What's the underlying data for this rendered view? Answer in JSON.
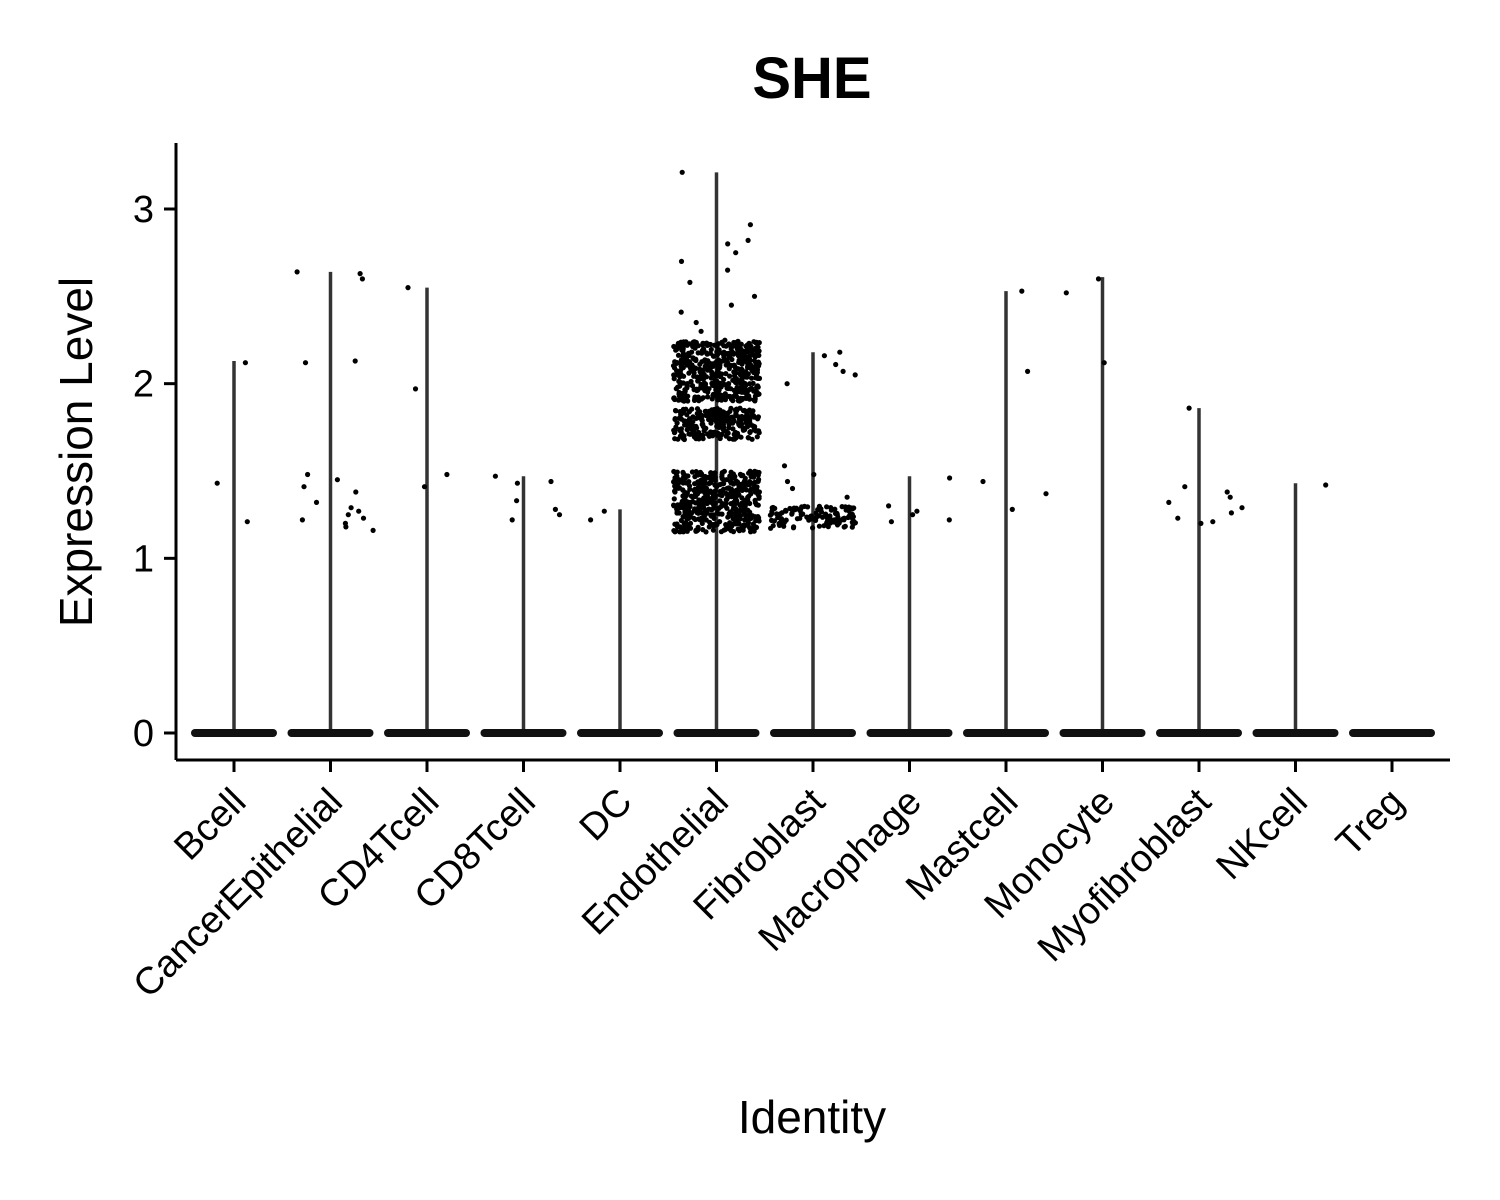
{
  "chart_data": {
    "type": "violin",
    "title": "SHE",
    "xlabel": "Identity",
    "ylabel": "Expression Level",
    "ylim": [
      -0.15,
      3.38
    ],
    "yticks": [
      0,
      1,
      2,
      3
    ],
    "categories": [
      "Bcell",
      "CancerEpithelial",
      "CD4Tcell",
      "CD8Tcell",
      "DC",
      "Endothelial",
      "Fibroblast",
      "Macrophage",
      "Mastcell",
      "Monocyte",
      "Myofibroblast",
      "NKcell",
      "Treg"
    ],
    "series": [
      {
        "name": "Bcell",
        "max": 2.13,
        "points": [
          1.21,
          1.43,
          2.12
        ]
      },
      {
        "name": "CancerEpithelial",
        "max": 2.64,
        "points": [
          1.16,
          1.18,
          1.2,
          1.22,
          1.23,
          1.25,
          1.27,
          1.29,
          1.32,
          1.38,
          1.41,
          1.45,
          1.48,
          2.12,
          2.13,
          2.6,
          2.63,
          2.64
        ]
      },
      {
        "name": "CD4Tcell",
        "max": 2.55,
        "points": [
          1.41,
          1.48,
          1.97,
          2.55
        ]
      },
      {
        "name": "CD8Tcell",
        "max": 1.47,
        "points": [
          1.22,
          1.25,
          1.28,
          1.33,
          1.43,
          1.44,
          1.47
        ]
      },
      {
        "name": "DC",
        "max": 1.28,
        "points": [
          1.22,
          1.27
        ]
      },
      {
        "name": "Endothelial",
        "max": 3.21,
        "points_summary": {
          "dense_clusters": [
            [
              1.15,
              1.5
            ],
            [
              1.68,
              1.86
            ],
            [
              1.9,
              2.25
            ]
          ],
          "high_points": [
            2.3,
            2.35,
            2.41,
            2.45,
            2.5,
            2.58,
            2.65,
            2.7,
            2.75,
            2.8,
            2.82,
            2.91,
            3.21
          ]
        }
      },
      {
        "name": "Fibroblast",
        "max": 2.18,
        "points_summary": {
          "dense_clusters": [
            [
              1.17,
              1.3
            ]
          ],
          "high_points": [
            1.35,
            1.4,
            1.44,
            1.48,
            1.53,
            2.0,
            2.05,
            2.07,
            2.11,
            2.16,
            2.18
          ]
        }
      },
      {
        "name": "Macrophage",
        "max": 1.47,
        "points": [
          1.21,
          1.22,
          1.25,
          1.27,
          1.3,
          1.46
        ]
      },
      {
        "name": "Mastcell",
        "max": 2.53,
        "points": [
          1.28,
          1.37,
          1.44,
          2.07,
          2.53
        ]
      },
      {
        "name": "Monocyte",
        "max": 2.61,
        "points": [
          2.12,
          2.52,
          2.6
        ]
      },
      {
        "name": "Myofibroblast",
        "max": 1.86,
        "points": [
          1.2,
          1.21,
          1.23,
          1.26,
          1.29,
          1.32,
          1.35,
          1.38,
          1.41,
          1.86
        ]
      },
      {
        "name": "NKcell",
        "max": 1.43,
        "points": [
          1.42
        ]
      },
      {
        "name": "Treg",
        "max": 0,
        "points": []
      }
    ],
    "baseline_value": 0,
    "grid": false,
    "legend": "none"
  }
}
